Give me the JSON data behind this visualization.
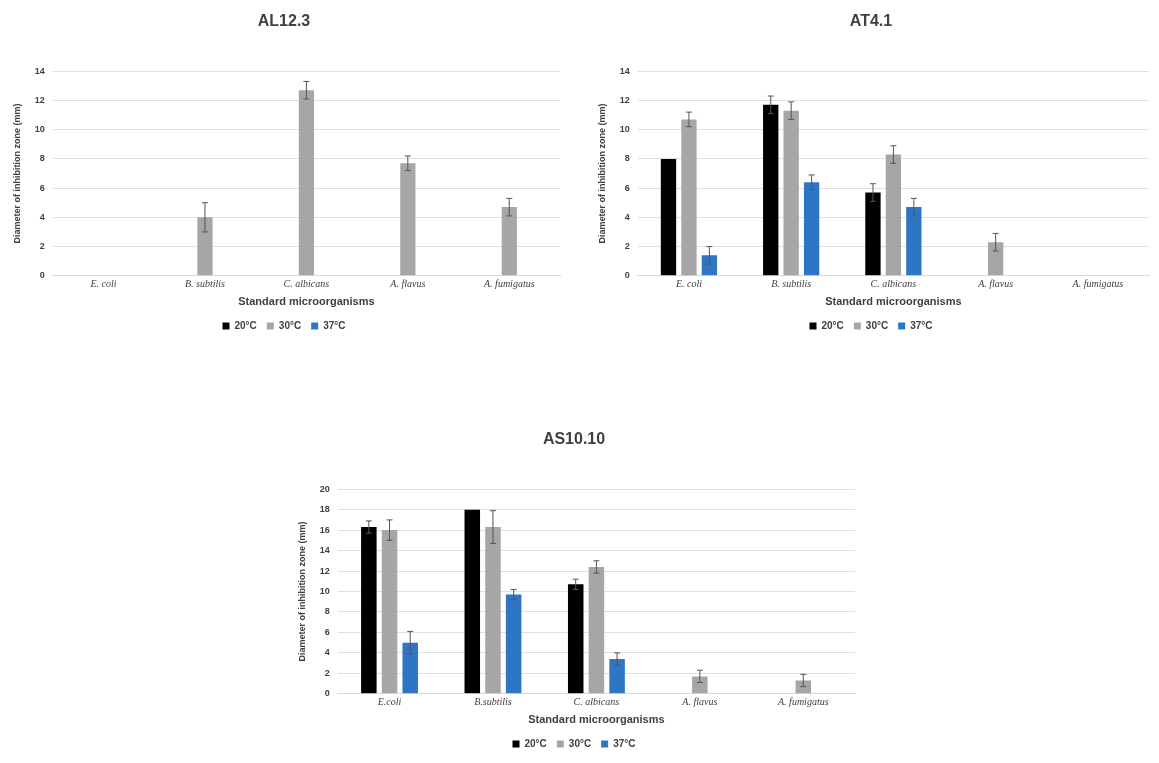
{
  "chart_data": [
    {
      "type": "bar",
      "title": "AL12.3",
      "xlabel": "Standard microorganisms",
      "ylabel": "Diameter of inhibition zone (mm)",
      "categories": [
        "E. coli",
        "B. subtilis",
        "C. albicans",
        "A. flavus",
        "A. fumigatus"
      ],
      "series": [
        {
          "name": "20°C",
          "color": "#000000",
          "values": [
            0,
            0,
            0,
            0,
            0
          ]
        },
        {
          "name": "30°C",
          "color": "#a6a6a6",
          "values": [
            0,
            4,
            12.7,
            7.7,
            4.7
          ],
          "errors": [
            null,
            1,
            0.6,
            0.5,
            0.6
          ]
        },
        {
          "name": "37°C",
          "color": "#2e75c6",
          "values": [
            0,
            0,
            0,
            0,
            0
          ]
        }
      ],
      "ylim": [
        0,
        14
      ],
      "yticks": [
        0,
        2,
        4,
        6,
        8,
        10,
        12,
        14
      ],
      "grid": "y",
      "legend": "bottom"
    },
    {
      "type": "bar",
      "title": "AT4.1",
      "xlabel": "Standard microorganisms",
      "ylabel": "Diameter of inhibition zone (mm)",
      "categories": [
        "E. coli",
        "B. subtilis",
        "C. albicans",
        "A. flavus",
        "A. fumigatus"
      ],
      "series": [
        {
          "name": "20°C",
          "color": "#000000",
          "values": [
            8,
            11.7,
            5.7,
            0,
            0
          ],
          "errors": [
            null,
            0.6,
            0.6,
            null,
            null
          ]
        },
        {
          "name": "30°C",
          "color": "#a6a6a6",
          "values": [
            10.7,
            11.3,
            8.3,
            2.3,
            0
          ],
          "errors": [
            0.5,
            0.6,
            0.6,
            0.6,
            null
          ]
        },
        {
          "name": "37°C",
          "color": "#2e75c6",
          "values": [
            1.4,
            6.4,
            4.7,
            0,
            0
          ],
          "errors": [
            0.6,
            0.5,
            0.6,
            null,
            null
          ]
        }
      ],
      "ylim": [
        0,
        14
      ],
      "yticks": [
        0,
        2,
        4,
        6,
        8,
        10,
        12,
        14
      ],
      "grid": "y",
      "legend": "bottom"
    },
    {
      "type": "bar",
      "title": "AS10.10",
      "xlabel": "Standard microorganisms",
      "ylabel": "Diameter of inhibition zone (mm)",
      "categories": [
        "E.coli",
        "B.subtilis",
        "C. albicans",
        "A. flavus",
        "A. fumigatus"
      ],
      "series": [
        {
          "name": "20°C",
          "color": "#000000",
          "values": [
            16.3,
            18,
            10.7,
            0,
            0
          ],
          "errors": [
            0.6,
            null,
            0.5,
            null,
            null
          ]
        },
        {
          "name": "30°C",
          "color": "#a6a6a6",
          "values": [
            16,
            16.3,
            12.4,
            1.7,
            1.3
          ],
          "errors": [
            1,
            1.6,
            0.6,
            0.6,
            0.6
          ]
        },
        {
          "name": "37°C",
          "color": "#2e75c6",
          "values": [
            5,
            9.7,
            3.4,
            0,
            0
          ],
          "errors": [
            1.1,
            0.5,
            0.6,
            null,
            null
          ]
        }
      ],
      "ylim": [
        0,
        20
      ],
      "yticks": [
        0,
        2,
        4,
        6,
        8,
        10,
        12,
        14,
        16,
        18,
        20
      ],
      "grid": "y",
      "legend": "bottom"
    }
  ]
}
